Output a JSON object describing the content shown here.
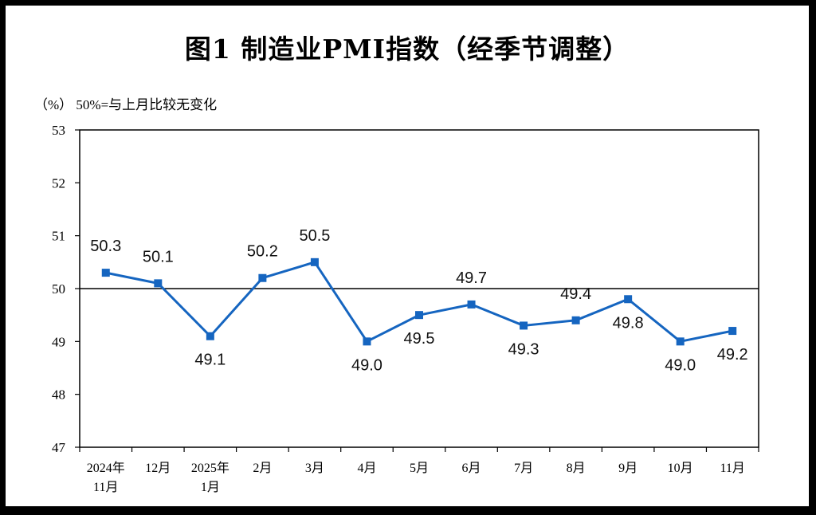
{
  "chart_data": {
    "type": "line",
    "title": "图1  制造业PMI指数（经季节调整）",
    "unit_note": "（%） 50%=与上月比较无变化",
    "x": [
      [
        "2024年",
        "11月"
      ],
      [
        "12月"
      ],
      [
        "2025年",
        "1月"
      ],
      [
        "2月"
      ],
      [
        "3月"
      ],
      [
        "4月"
      ],
      [
        "5月"
      ],
      [
        "6月"
      ],
      [
        "7月"
      ],
      [
        "8月"
      ],
      [
        "9月"
      ],
      [
        "10月"
      ],
      [
        "11月"
      ]
    ],
    "series": [
      {
        "values": [
          50.3,
          50.1,
          49.1,
          50.2,
          50.5,
          49.0,
          49.5,
          49.7,
          49.3,
          49.4,
          49.8,
          49.0,
          49.2
        ],
        "labels": [
          "50.3",
          "50.1",
          "49.1",
          "50.2",
          "50.5",
          "49.0",
          "49.5",
          "49.7",
          "49.3",
          "49.4",
          "49.8",
          "49.0",
          "49.2"
        ],
        "label_pos": [
          "above",
          "above",
          "below",
          "above",
          "above",
          "below",
          "below",
          "above",
          "below",
          "above",
          "below",
          "below",
          "below"
        ],
        "color": "#1565c0"
      }
    ],
    "ylim": [
      47,
      53
    ],
    "yticks": [
      "47",
      "48",
      "49",
      "50",
      "51",
      "52",
      "53"
    ],
    "reference_line": 50,
    "grid": false,
    "legend": "none"
  }
}
